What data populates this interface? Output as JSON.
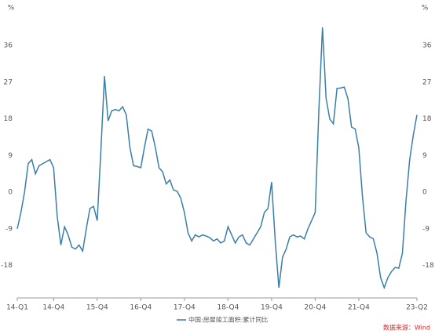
{
  "chart_data": {
    "type": "line",
    "y_unit": "%",
    "legend_label": "中国:房屋竣工面积:累计同比",
    "source": "数据来源：Wind",
    "categories": [
      "14-Q1",
      null,
      null,
      null,
      null,
      null,
      null,
      null,
      null,
      null,
      "14-Q4",
      null,
      null,
      null,
      null,
      null,
      null,
      null,
      null,
      null,
      null,
      null,
      "15-Q4",
      null,
      null,
      null,
      null,
      null,
      null,
      null,
      null,
      null,
      null,
      null,
      "16-Q4",
      null,
      null,
      null,
      null,
      null,
      null,
      null,
      null,
      null,
      null,
      null,
      "17-Q4",
      null,
      null,
      null,
      null,
      null,
      null,
      null,
      null,
      null,
      null,
      null,
      "18-Q4",
      null,
      null,
      null,
      null,
      null,
      null,
      null,
      null,
      null,
      null,
      null,
      "19-Q4",
      null,
      null,
      null,
      null,
      null,
      null,
      null,
      null,
      null,
      null,
      null,
      "20-Q4",
      null,
      null,
      null,
      null,
      null,
      null,
      null,
      null,
      null,
      null,
      null,
      "21-Q4",
      null,
      null,
      null,
      null,
      null,
      null,
      null,
      null,
      null,
      null,
      null,
      null,
      null,
      null,
      null,
      "23-Q2"
    ],
    "series": [
      {
        "name": "中国:房屋竣工面积:累计同比",
        "color": "#3a7fa8",
        "values": [
          -9,
          -5,
          0,
          7,
          8,
          4.5,
          6.5,
          7,
          7.5,
          8,
          6,
          -6,
          -13,
          -8.5,
          -10.5,
          -13.5,
          -14,
          -13,
          -14.5,
          -9,
          -4,
          -3.5,
          -7,
          10,
          28.5,
          17.5,
          20,
          20.3,
          20,
          21,
          19,
          11,
          6.5,
          6.3,
          6,
          11,
          15.5,
          15,
          11,
          6,
          5,
          2,
          3,
          0.5,
          0.2,
          -1.5,
          -5,
          -10,
          -12,
          -10.5,
          -11,
          -10.5,
          -10.8,
          -11.2,
          -12,
          -11.5,
          -12.5,
          -12,
          -8.5,
          -10.5,
          -12.5,
          -11,
          -10.5,
          -12.5,
          -13,
          -11.5,
          -10,
          -8.5,
          -5,
          -4,
          2.5,
          -12,
          -23.5,
          -16,
          -14,
          -11,
          -10.5,
          -11,
          -10.8,
          -11.5,
          -9,
          -7,
          -5,
          20,
          40.5,
          23,
          18,
          16.8,
          25.5,
          25.6,
          25.8,
          23,
          16,
          15.5,
          10.9,
          -1,
          -10,
          -11,
          -11.5,
          -15,
          -21,
          -23.5,
          -21,
          -19.5,
          -18.5,
          -18.7,
          -15,
          -2,
          8,
          14,
          19
        ]
      }
    ],
    "ylim": [
      -26,
      44
    ],
    "yticks": [
      -18,
      -9,
      0,
      9,
      18,
      27,
      36
    ],
    "grid": false
  }
}
